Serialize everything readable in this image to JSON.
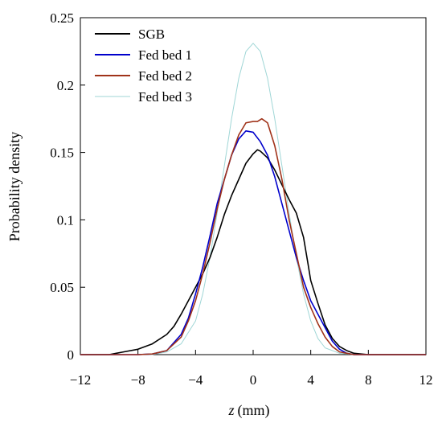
{
  "chart_data": {
    "type": "line",
    "title": "",
    "xlabel": "z",
    "xlabel_unit": "(mm)",
    "ylabel": "Probability density",
    "xlim": [
      -12,
      12
    ],
    "ylim": [
      0,
      0.25
    ],
    "xticks": [
      -12,
      -8,
      -4,
      0,
      4,
      8,
      12
    ],
    "xtick_labels": [
      "−12",
      "−8",
      "−4",
      "0",
      "4",
      "8",
      "12"
    ],
    "yticks": [
      0,
      0.05,
      0.1,
      0.15,
      0.2,
      0.25
    ],
    "ytick_labels": [
      "0",
      "0.05",
      "0.1",
      "0.15",
      "0.2",
      "0.25"
    ],
    "grid": false,
    "legend_position": "top-left",
    "series": [
      {
        "name": "SGB",
        "color": "#000000",
        "points": [
          [
            -12,
            0
          ],
          [
            -10,
            0
          ],
          [
            -9.5,
            0.001
          ],
          [
            -9,
            0.002
          ],
          [
            -8,
            0.004
          ],
          [
            -7,
            0.008
          ],
          [
            -6,
            0.015
          ],
          [
            -5.5,
            0.021
          ],
          [
            -5,
            0.03
          ],
          [
            -4.5,
            0.04
          ],
          [
            -4,
            0.05
          ],
          [
            -3.5,
            0.06
          ],
          [
            -3,
            0.072
          ],
          [
            -2.5,
            0.087
          ],
          [
            -2,
            0.104
          ],
          [
            -1.5,
            0.118
          ],
          [
            -1,
            0.13
          ],
          [
            -0.5,
            0.142
          ],
          [
            0,
            0.149
          ],
          [
            0.3,
            0.152
          ],
          [
            0.5,
            0.151
          ],
          [
            1,
            0.146
          ],
          [
            1.5,
            0.137
          ],
          [
            2,
            0.126
          ],
          [
            2.5,
            0.115
          ],
          [
            3,
            0.105
          ],
          [
            3.5,
            0.087
          ],
          [
            3.8,
            0.068
          ],
          [
            4,
            0.055
          ],
          [
            4.5,
            0.038
          ],
          [
            5,
            0.022
          ],
          [
            5.5,
            0.012
          ],
          [
            6,
            0.006
          ],
          [
            6.5,
            0.003
          ],
          [
            7,
            0.001
          ],
          [
            8,
            0
          ],
          [
            12,
            0
          ]
        ]
      },
      {
        "name": "Fed bed 1",
        "color": "#0000cc",
        "points": [
          [
            -12,
            0
          ],
          [
            -8,
            0
          ],
          [
            -7,
            0.0005
          ],
          [
            -6,
            0.003
          ],
          [
            -5,
            0.015
          ],
          [
            -4.5,
            0.027
          ],
          [
            -4,
            0.045
          ],
          [
            -3.5,
            0.065
          ],
          [
            -3,
            0.088
          ],
          [
            -2.5,
            0.112
          ],
          [
            -2,
            0.13
          ],
          [
            -1.5,
            0.148
          ],
          [
            -1,
            0.16
          ],
          [
            -0.5,
            0.166
          ],
          [
            0,
            0.165
          ],
          [
            0.5,
            0.158
          ],
          [
            1,
            0.148
          ],
          [
            1.5,
            0.132
          ],
          [
            2,
            0.112
          ],
          [
            2.5,
            0.092
          ],
          [
            3,
            0.072
          ],
          [
            3.5,
            0.055
          ],
          [
            4,
            0.04
          ],
          [
            4.5,
            0.03
          ],
          [
            5,
            0.02
          ],
          [
            5.5,
            0.01
          ],
          [
            6,
            0.004
          ],
          [
            6.5,
            0.001
          ],
          [
            7,
            0
          ],
          [
            12,
            0
          ]
        ]
      },
      {
        "name": "Fed bed 2",
        "color": "#a0331a",
        "points": [
          [
            -12,
            0
          ],
          [
            -8,
            0
          ],
          [
            -7,
            0.0005
          ],
          [
            -6,
            0.003
          ],
          [
            -5,
            0.013
          ],
          [
            -4.5,
            0.025
          ],
          [
            -4,
            0.04
          ],
          [
            -3.5,
            0.06
          ],
          [
            -3,
            0.083
          ],
          [
            -2.5,
            0.108
          ],
          [
            -2,
            0.13
          ],
          [
            -1.5,
            0.148
          ],
          [
            -1,
            0.163
          ],
          [
            -0.5,
            0.172
          ],
          [
            0,
            0.173
          ],
          [
            0.3,
            0.173
          ],
          [
            0.6,
            0.175
          ],
          [
            1,
            0.172
          ],
          [
            1.5,
            0.155
          ],
          [
            2,
            0.13
          ],
          [
            2.5,
            0.1
          ],
          [
            3,
            0.075
          ],
          [
            3.5,
            0.05
          ],
          [
            4,
            0.035
          ],
          [
            4.5,
            0.023
          ],
          [
            5,
            0.013
          ],
          [
            5.5,
            0.006
          ],
          [
            6,
            0.002
          ],
          [
            6.5,
            0.001
          ],
          [
            7,
            0
          ],
          [
            12,
            0
          ]
        ]
      },
      {
        "name": "Fed bed 3",
        "color": "#9fd6d6",
        "points": [
          [
            -12,
            0
          ],
          [
            -7,
            0
          ],
          [
            -6,
            0.002
          ],
          [
            -5,
            0.008
          ],
          [
            -4,
            0.025
          ],
          [
            -3.5,
            0.045
          ],
          [
            -3,
            0.072
          ],
          [
            -2.5,
            0.105
          ],
          [
            -2,
            0.14
          ],
          [
            -1.5,
            0.175
          ],
          [
            -1,
            0.205
          ],
          [
            -0.5,
            0.225
          ],
          [
            0,
            0.231
          ],
          [
            0.5,
            0.225
          ],
          [
            1,
            0.205
          ],
          [
            1.5,
            0.175
          ],
          [
            2,
            0.14
          ],
          [
            2.5,
            0.105
          ],
          [
            3,
            0.072
          ],
          [
            3.5,
            0.045
          ],
          [
            4,
            0.025
          ],
          [
            4.5,
            0.012
          ],
          [
            5,
            0.005
          ],
          [
            6,
            0.001
          ],
          [
            7,
            0
          ],
          [
            12,
            0
          ]
        ]
      }
    ]
  }
}
